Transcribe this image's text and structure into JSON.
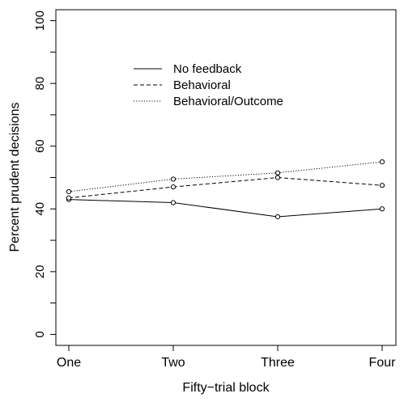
{
  "chart_data": {
    "type": "line",
    "title": "",
    "xlabel": "Fifty−trial block",
    "ylabel": "Percent prudent decisions",
    "categories": [
      "One",
      "Two",
      "Three",
      "Four"
    ],
    "ylim": [
      -3.5,
      103.5
    ],
    "yticks": [
      0,
      20,
      40,
      60,
      80,
      100
    ],
    "ytick_labels": [
      "0",
      "20",
      "40",
      "60",
      "80",
      "100"
    ],
    "grid": false,
    "legend_position": "top-center",
    "series": [
      {
        "name": "No feedback",
        "values": [
          43,
          42,
          37.5,
          40
        ],
        "line_style": "solid",
        "marker": "open-circle"
      },
      {
        "name": "Behavioral",
        "values": [
          43.5,
          47,
          50,
          47.5
        ],
        "line_style": "dashed",
        "marker": "open-circle"
      },
      {
        "name": "Behavioral/Outcome",
        "values": [
          45.5,
          49.5,
          51.5,
          55
        ],
        "line_style": "dotted",
        "marker": "open-circle"
      }
    ]
  }
}
